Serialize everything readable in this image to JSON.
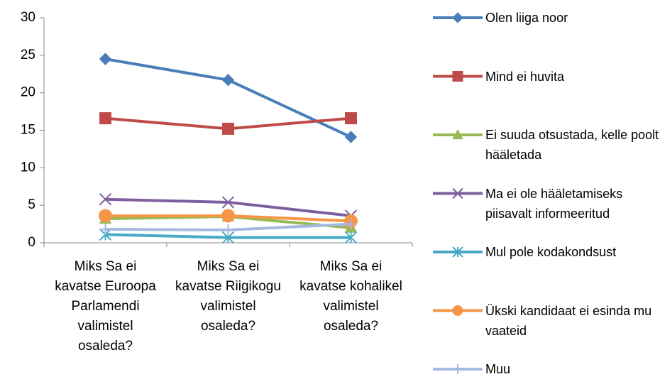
{
  "chart_data": {
    "type": "line",
    "categories": [
      "Miks Sa ei kavatse Euroopa Parlamendi valimistel osaleda?",
      "Miks Sa ei kavatse Riigikogu valimistel osaleda?",
      "Miks Sa ei kavatse kohalikel valimistel osaleda?"
    ],
    "series": [
      {
        "name": "Olen liiga noor",
        "color": "#4a7ebb",
        "marker": "diamond",
        "values": [
          24.5,
          21.7,
          14.1
        ]
      },
      {
        "name": "Mind ei huvita",
        "color": "#be4b48",
        "marker": "square",
        "values": [
          16.6,
          15.2,
          16.6
        ]
      },
      {
        "name": "Ei suuda otsustada, kelle poolt hääletada",
        "color": "#98b954",
        "marker": "triangle",
        "values": [
          3.2,
          3.5,
          2.0
        ]
      },
      {
        "name": "Ma ei ole hääletamiseks piisavalt informeeritud",
        "color": "#7d5fa0",
        "marker": "x",
        "values": [
          5.8,
          5.4,
          3.6
        ]
      },
      {
        "name": "Mul pole kodakondsust",
        "color": "#46aac5",
        "marker": "star",
        "values": [
          1.1,
          0.7,
          0.7
        ]
      },
      {
        "name": "Ükski kandidaat ei esinda mu vaateid",
        "color": "#f79646",
        "marker": "circle",
        "values": [
          3.6,
          3.6,
          2.9
        ]
      },
      {
        "name": "Muu",
        "color": "#a5b8e0",
        "marker": "plus",
        "values": [
          1.8,
          1.7,
          2.5
        ]
      }
    ],
    "ylim": [
      0,
      30
    ],
    "yticks": [
      0,
      5,
      10,
      15,
      20,
      25,
      30
    ],
    "grid": false,
    "legend": "right"
  }
}
